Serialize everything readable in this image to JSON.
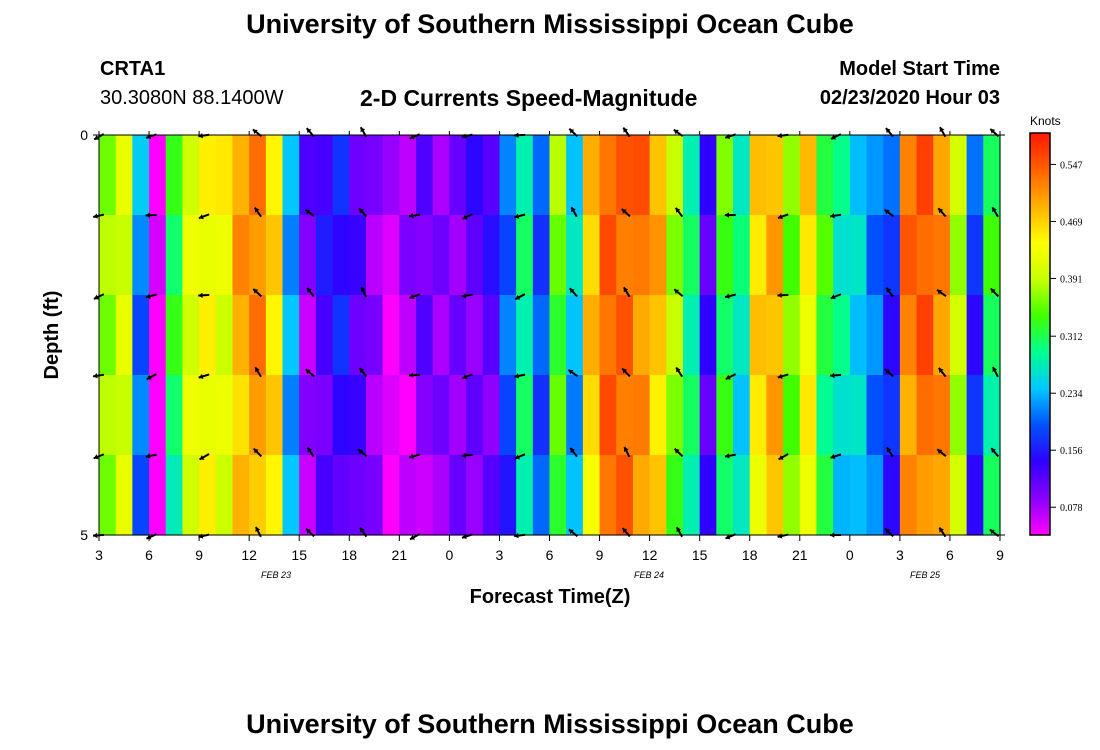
{
  "header": {
    "title": "University of Southern Mississippi Ocean Cube",
    "bottom_title": "University of Southern Mississippi Ocean Cube",
    "station": "CRTA1",
    "coordinates": "30.3080N 88.1400W",
    "subtitle": "2-D Currents Speed-Magnitude",
    "model_start_label": "Model Start Time",
    "model_start_value": "02/23/2020 Hour 03"
  },
  "chart_data": {
    "type": "heatmap",
    "title": "2-D Currents Speed-Magnitude",
    "xlabel": "Forecast Time(Z)",
    "ylabel": "Depth (ft)",
    "y_ticks": [
      "0",
      "5"
    ],
    "ylim": [
      0,
      5
    ],
    "x_tick_labels": [
      "3",
      "6",
      "9",
      "12",
      "15",
      "18",
      "21",
      "0",
      "3",
      "6",
      "9",
      "12",
      "15",
      "18",
      "21",
      "0",
      "3",
      "6",
      "9"
    ],
    "day_labels": [
      "FEB 23",
      "FEB 24",
      "FEB 25"
    ],
    "colorbar": {
      "unit": "Knots",
      "ticks": [
        "0.547",
        "0.469",
        "0.391",
        "0.312",
        "0.234",
        "0.156",
        "0.078"
      ],
      "min": 0.04,
      "max": 0.59,
      "colors": [
        "#ff00ff",
        "#8a00ff",
        "#3000ff",
        "#0050ff",
        "#00c8ff",
        "#00ff90",
        "#40ff00",
        "#c8ff00",
        "#ffff00",
        "#ffb000",
        "#ff6000",
        "#ff1800"
      ]
    },
    "time_hours": 54,
    "depth_rows": 5,
    "speed_profile_time": [
      [
        0,
        0.38
      ],
      [
        1,
        0.42
      ],
      [
        2,
        0.22
      ],
      [
        3,
        0.04
      ],
      [
        4,
        0.32
      ],
      [
        5,
        0.42
      ],
      [
        6,
        0.45
      ],
      [
        7,
        0.43
      ],
      [
        8,
        0.5
      ],
      [
        9,
        0.52
      ],
      [
        10,
        0.47
      ],
      [
        11,
        0.24
      ],
      [
        12,
        0.1
      ],
      [
        13,
        0.14
      ],
      [
        14,
        0.16
      ],
      [
        15,
        0.13
      ],
      [
        16,
        0.1
      ],
      [
        17,
        0.06
      ],
      [
        18,
        0.08
      ],
      [
        19,
        0.11
      ],
      [
        20,
        0.1
      ],
      [
        21,
        0.11
      ],
      [
        22,
        0.12
      ],
      [
        23,
        0.13
      ],
      [
        24,
        0.2
      ],
      [
        25,
        0.3
      ],
      [
        26,
        0.2
      ],
      [
        27,
        0.36
      ],
      [
        28,
        0.25
      ],
      [
        29,
        0.48
      ],
      [
        30,
        0.55
      ],
      [
        31,
        0.55
      ],
      [
        32,
        0.53
      ],
      [
        33,
        0.49
      ],
      [
        34,
        0.38
      ],
      [
        35,
        0.3
      ],
      [
        36,
        0.14
      ],
      [
        37,
        0.34
      ],
      [
        38,
        0.28
      ],
      [
        39,
        0.47
      ],
      [
        40,
        0.5
      ],
      [
        41,
        0.37
      ],
      [
        42,
        0.46
      ],
      [
        43,
        0.33
      ],
      [
        44,
        0.28
      ],
      [
        45,
        0.26
      ],
      [
        46,
        0.22
      ],
      [
        47,
        0.18
      ],
      [
        48,
        0.53
      ],
      [
        49,
        0.55
      ],
      [
        50,
        0.52
      ],
      [
        51,
        0.4
      ],
      [
        52,
        0.18
      ],
      [
        53,
        0.32
      ]
    ],
    "arrows_note": "current direction vectors drawn at 18 time columns and 5 depths"
  }
}
